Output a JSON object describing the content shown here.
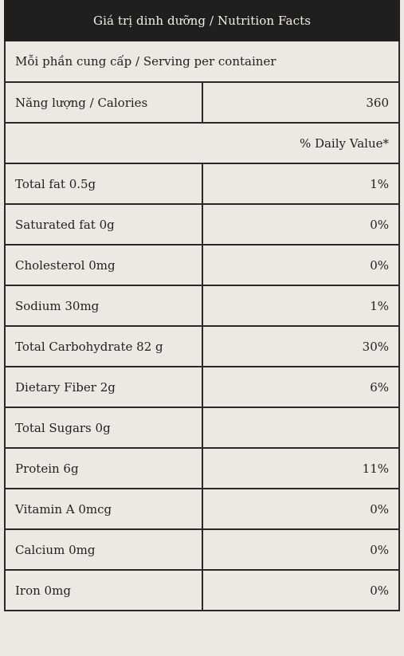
{
  "title": "Giá trị dinh dưỡng / Nutrition Facts",
  "serving": "Mỗi phần cung cấp / Serving per container",
  "calories": {
    "label": "Năng lượng / Calories",
    "value": "360"
  },
  "daily_value_header": "% Daily Value*",
  "nutrients": [
    {
      "label": "Total fat 0.5g",
      "value": "1%"
    },
    {
      "label": "Saturated fat 0g",
      "value": "0%"
    },
    {
      "label": "Cholesterol 0mg",
      "value": "0%"
    },
    {
      "label": "Sodium 30mg",
      "value": "1%"
    },
    {
      "label": "Total Carbohydrate 82 g",
      "value": "30%"
    },
    {
      "label": "Dietary Fiber 2g",
      "value": "6%"
    },
    {
      "label": "Total Sugars 0g",
      "value": ""
    },
    {
      "label": "Protein 6g",
      "value": "11%"
    },
    {
      "label": "Vitamin A 0mcg",
      "value": "0%"
    },
    {
      "label": "Calcium 0mg",
      "value": "0%"
    },
    {
      "label": "Iron 0mg",
      "value": "0%"
    }
  ]
}
